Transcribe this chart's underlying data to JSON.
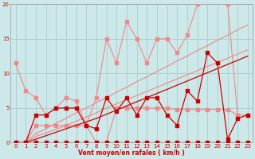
{
  "x": [
    0,
    1,
    2,
    3,
    4,
    5,
    6,
    7,
    8,
    9,
    10,
    11,
    12,
    13,
    14,
    15,
    16,
    17,
    18,
    19,
    20,
    21,
    22,
    23
  ],
  "line_light_zigzag": [
    11.5,
    7.5,
    6.5,
    4.0,
    5.0,
    6.5,
    6.0,
    2.5,
    6.5,
    15.0,
    11.5,
    17.5,
    15.0,
    11.5,
    15.0,
    15.0,
    13.0,
    15.5,
    20.0,
    20.5,
    20.5,
    20.0,
    4.0,
    4.0
  ],
  "line_light_reg1": [
    0,
    0,
    0.9,
    1.4,
    1.9,
    2.5,
    3.1,
    3.7,
    4.3,
    5.0,
    5.6,
    6.2,
    6.8,
    7.4,
    8.0,
    8.6,
    9.2,
    9.8,
    10.4,
    11.0,
    11.6,
    12.2,
    12.8,
    13.4
  ],
  "line_light_reg2": [
    0,
    0,
    1.3,
    2.0,
    2.8,
    3.5,
    4.3,
    5.0,
    5.8,
    6.5,
    7.3,
    8.0,
    8.8,
    9.5,
    10.3,
    11.0,
    11.8,
    12.5,
    13.3,
    14.0,
    14.8,
    15.5,
    16.3,
    17.0
  ],
  "line_light_flat": [
    0,
    0,
    2.5,
    2.5,
    2.5,
    2.5,
    2.5,
    2.5,
    0.0,
    0.0,
    5.0,
    5.0,
    5.0,
    5.0,
    5.0,
    5.0,
    4.8,
    4.8,
    4.8,
    4.8,
    4.8,
    4.8,
    4.0,
    4.0
  ],
  "line_dark_zero": [
    0,
    0,
    0,
    0,
    0,
    0,
    0,
    0,
    0,
    0,
    0,
    0,
    0,
    0,
    0,
    0,
    0,
    0,
    0,
    0,
    0,
    0,
    0,
    0
  ],
  "line_dark_reg": [
    0,
    0,
    0.5,
    1.0,
    1.5,
    2.0,
    2.5,
    3.0,
    3.5,
    4.1,
    4.7,
    5.3,
    5.9,
    6.5,
    7.1,
    7.7,
    8.3,
    8.9,
    9.5,
    10.1,
    10.7,
    11.3,
    11.9,
    12.5
  ],
  "line_dark_zigzag": [
    0,
    0,
    4.0,
    4.0,
    5.0,
    5.0,
    5.0,
    2.5,
    2.0,
    6.5,
    4.5,
    6.5,
    4.0,
    6.5,
    6.5,
    4.0,
    2.5,
    7.5,
    6.0,
    13.0,
    11.5,
    0.5,
    3.5,
    4.0
  ],
  "bg_color": "#cce8e8",
  "grid_color": "#aacccc",
  "light_red": "#f08888",
  "dark_red": "#cc0000",
  "xlabel": "Vent moyen/en rafales ( km/h )",
  "xlim": [
    -0.5,
    23.5
  ],
  "ylim": [
    0,
    20
  ],
  "xticks": [
    0,
    1,
    2,
    3,
    4,
    5,
    6,
    7,
    8,
    9,
    10,
    11,
    12,
    13,
    14,
    15,
    16,
    17,
    18,
    19,
    20,
    21,
    22,
    23
  ],
  "yticks": [
    0,
    5,
    10,
    15,
    20
  ]
}
